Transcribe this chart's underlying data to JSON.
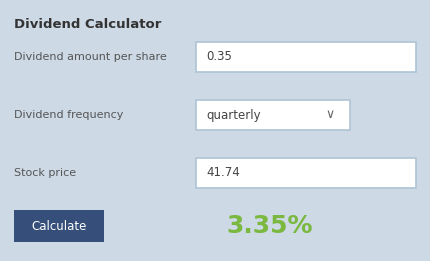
{
  "title": "Dividend Calculator",
  "bg_color": "#cdd9e5",
  "label1": "Dividend amount per share",
  "value1": "0.35",
  "label2": "Dividend frequency",
  "value2": "quarterly",
  "label3": "Stock price",
  "value3": "41.74",
  "button_text": "Calculate",
  "button_color": "#354f7a",
  "button_text_color": "#ffffff",
  "result_text": "3.35%",
  "result_color": "#7ab840",
  "input_bg": "#ffffff",
  "input_border": "#aec4d4",
  "label_color": "#555555",
  "title_color": "#333333",
  "dropdown_arrow": "∨",
  "figwidth": 4.3,
  "figheight": 2.61,
  "dpi": 100
}
